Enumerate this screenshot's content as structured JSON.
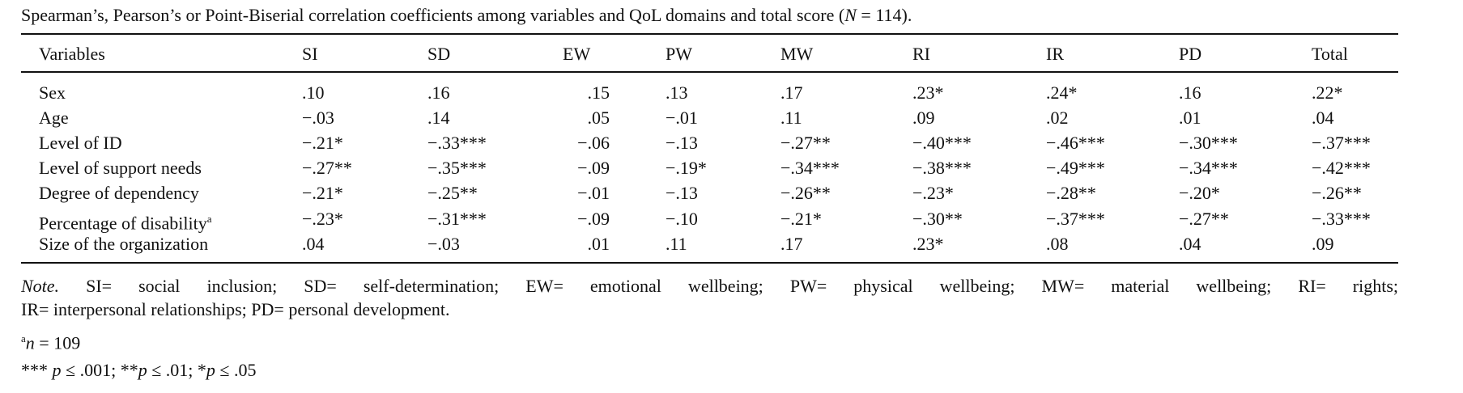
{
  "caption": {
    "text": "Spearman’s, Pearson’s or Point-Biserial correlation coefficients among variables and QoL domains and total score (",
    "n_symbol": "N",
    "n_value": " = 114)."
  },
  "table": {
    "headers": [
      "Variables",
      "SI",
      "SD",
      "EW",
      "PW",
      "MW",
      "RI",
      "IR",
      "PD",
      "Total"
    ],
    "rows": [
      {
        "label": "Sex",
        "sup": "",
        "values": [
          ".10",
          ".16",
          ".15",
          ".13",
          ".17",
          ".23*",
          ".24*",
          ".16",
          ".22*"
        ]
      },
      {
        "label": "Age",
        "sup": "",
        "values": [
          "−.03",
          ".14",
          ".05",
          "−.01",
          ".11",
          ".09",
          ".02",
          ".01",
          ".04"
        ]
      },
      {
        "label": "Level of ID",
        "sup": "",
        "values": [
          "−.21*",
          "−.33***",
          "−.06",
          "−.13",
          "−.27**",
          "−.40***",
          "−.46***",
          "−.30***",
          "−.37***"
        ]
      },
      {
        "label": "Level of support needs",
        "sup": "",
        "values": [
          "−.27**",
          "−.35***",
          "−.09",
          "−.19*",
          "−.34***",
          "−.38***",
          "−.49***",
          "−.34***",
          "−.42***"
        ]
      },
      {
        "label": "Degree of dependency",
        "sup": "",
        "values": [
          "−.21*",
          "−.25**",
          "−.01",
          "−.13",
          "−.26**",
          "−.23*",
          "−.28**",
          "−.20*",
          "−.26**"
        ]
      },
      {
        "label": "Percentage of disability",
        "sup": "a",
        "values": [
          "−.23*",
          "−.31***",
          "−.09",
          "−.10",
          "−.21*",
          "−.30**",
          "−.37***",
          "−.27**",
          "−.33***"
        ]
      },
      {
        "label": "Size of the organization",
        "sup": "",
        "values": [
          ".04",
          "−.03",
          ".01",
          ".11",
          ".17",
          ".23*",
          ".08",
          ".04",
          ".09"
        ]
      }
    ]
  },
  "notes": {
    "note_label": "Note.",
    "line1": " SI= social inclusion; SD= self-determination; EW= emotional wellbeing; PW= physical wellbeing; MW= material wellbeing; RI= rights;",
    "line2": "IR= interpersonal relationships; PD= personal development.",
    "footnote_a_sup": "a",
    "footnote_a_var": "n",
    "footnote_a_text": " = 109",
    "sig_1_stars": "***",
    "sig_1": " ≤ .001; ",
    "sig_2_stars": "**",
    "sig_2": " ≤ .01; ",
    "sig_3_stars": "*",
    "sig_3": " ≤ .05",
    "p_symbol": "p"
  }
}
